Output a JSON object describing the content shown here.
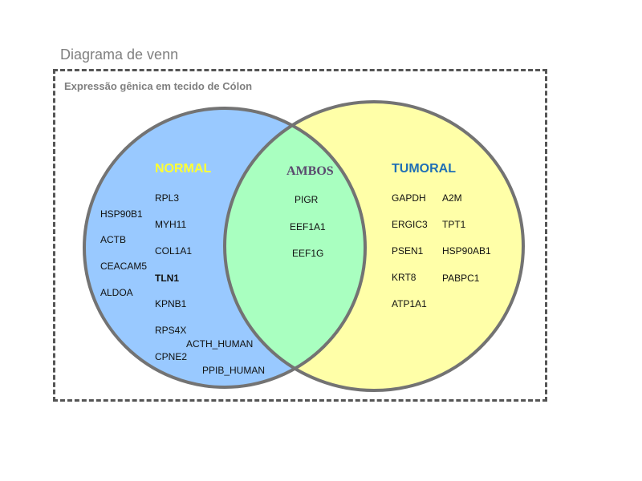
{
  "caption": "Diagrama de venn",
  "frame_title": "Expressão gênica em tecido de Cólon",
  "sets": {
    "normal": {
      "label": "NORMAL",
      "color": "#99c9ff"
    },
    "both": {
      "label": "AMBOS",
      "color": "#a9ffc0"
    },
    "tumoral": {
      "label": "TUMORAL",
      "color": "#ffffa8"
    }
  },
  "normal_genes": [
    "RPL3",
    "HSP90B1",
    "MYH11",
    "ACTB",
    "COL1A1",
    "CEACAM5",
    "TLN1",
    "ALDOA",
    "KPNB1",
    "RPS4X",
    "ACTH_HUMAN",
    "CPNE2",
    "PPIB_HUMAN"
  ],
  "both_genes": [
    "PIGR",
    "EEF1A1",
    "EEF1G"
  ],
  "tumoral_genes": [
    "GAPDH",
    "A2M",
    "ERGIC3",
    "TPT1",
    "PSEN1",
    "HSP90AB1",
    "KRT8",
    "PABPC1",
    "ATP1A1"
  ]
}
